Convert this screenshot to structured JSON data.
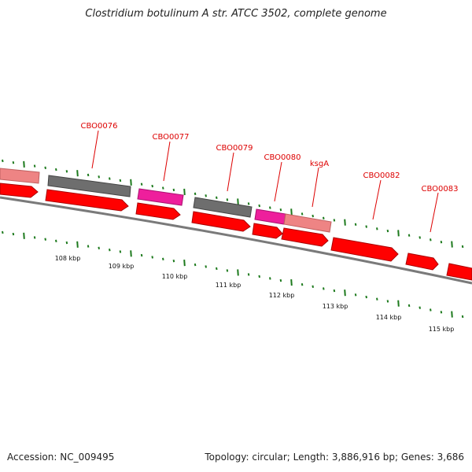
{
  "title": "Clostridium botulinum A str. ATCC 3502, complete genome",
  "footer": {
    "accession": "Accession: NC_009495",
    "topology": "Topology: circular; Length: 3,886,916 bp; Genes: 3,686"
  },
  "colors": {
    "backbone": "#7a7a7a",
    "cds_forward": "#ff0000",
    "gene_dark": "#6e6e6e",
    "gene_magenta": "#ee1f9c",
    "gene_pink": "#ee8484",
    "tick": "#1d7a1d",
    "label": "#dd0000"
  },
  "scale_labels": [
    "108 kbp",
    "109 kbp",
    "110 kbp",
    "111 kbp",
    "112 kbp",
    "113 kbp",
    "114 kbp",
    "115 kbp"
  ],
  "gene_labels": [
    "CBO0076",
    "CBO0077",
    "CBO0079",
    "CBO0080",
    "ksgA",
    "CBO0082",
    "CBO0083"
  ]
}
